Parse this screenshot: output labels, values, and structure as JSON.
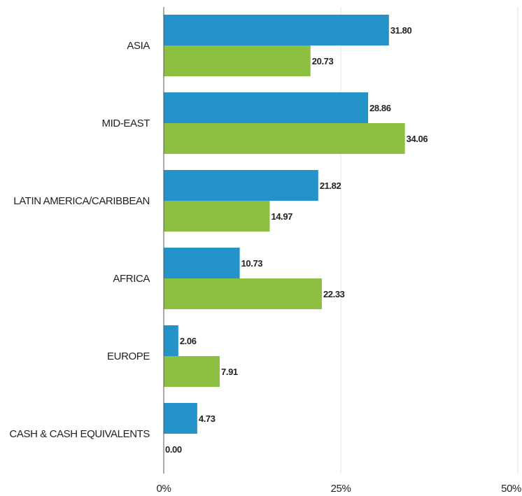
{
  "chart_data": {
    "type": "bar",
    "orientation": "horizontal",
    "categories": [
      "ASIA",
      "MID-EAST",
      "LATIN AMERICA/CARIBBEAN",
      "AFRICA",
      "EUROPE",
      "CASH & CASH EQUIVALENTS"
    ],
    "series": [
      {
        "color": "#2493c9",
        "values": [
          31.8,
          28.86,
          21.82,
          10.73,
          2.06,
          4.73
        ],
        "value_labels": [
          "31.80",
          "28.86",
          "21.82",
          "10.73",
          "2.06",
          "4.73"
        ]
      },
      {
        "color": "#8dc041",
        "values": [
          20.73,
          34.06,
          14.97,
          22.33,
          7.91,
          0.0
        ],
        "value_labels": [
          "20.73",
          "34.06",
          "14.97",
          "22.33",
          "7.91",
          "0.00"
        ]
      }
    ],
    "xlim": [
      0,
      50
    ],
    "xticks": [
      0,
      25,
      50
    ],
    "xtick_labels": [
      "0%",
      "25%",
      "50%"
    ],
    "grid": "vertical",
    "legend": "none",
    "title": "",
    "xlabel": "",
    "ylabel": ""
  }
}
